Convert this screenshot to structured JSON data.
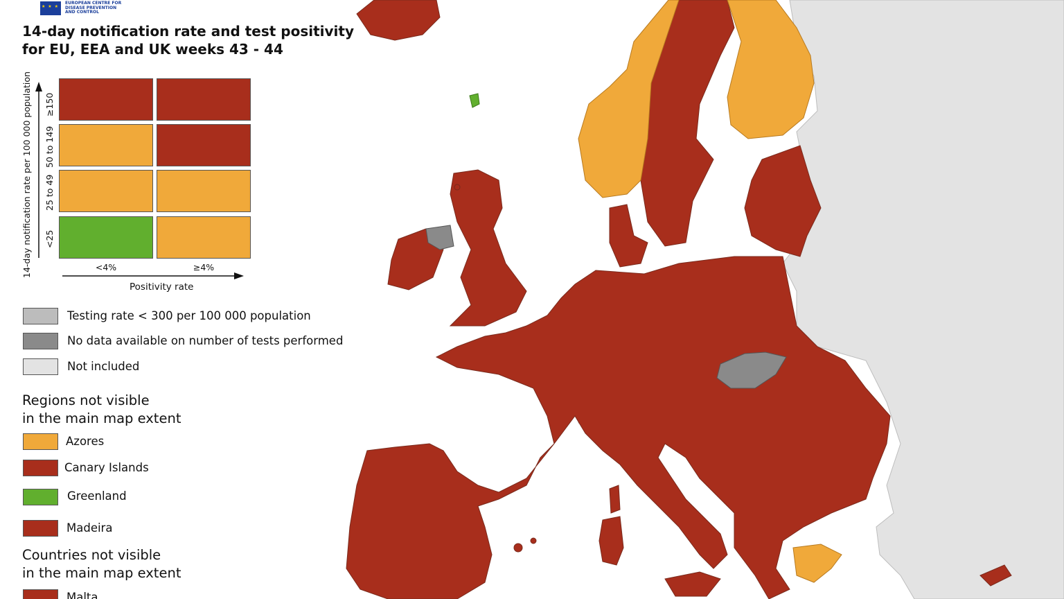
{
  "header": {
    "logo_text": "EUROPEAN CENTRE FOR DISEASE PREVENTION AND CONTROL",
    "title_line1": "14-day notification rate and test positivity",
    "title_line2": "for EU, EEA and UK weeks 43 - 44"
  },
  "matrix": {
    "y_axis_label": "14-day notification rate per 100 000 population",
    "x_axis_label": "Positivity rate",
    "row_labels": [
      "≥150",
      "50 to 149",
      "25 to 49",
      "<25"
    ],
    "col_labels": [
      "<4%",
      "≥4%"
    ],
    "cells": [
      [
        "#a82e1c",
        "#a82e1c"
      ],
      [
        "#f0a93a",
        "#a82e1c"
      ],
      [
        "#f0a93a",
        "#f0a93a"
      ],
      [
        "#61af2e",
        "#f0a93a"
      ]
    ]
  },
  "legend": {
    "items": [
      {
        "label": "Testing rate < 300 per 100 000 population",
        "color": "#bcbcbc"
      },
      {
        "label": "No data available on number of tests performed",
        "color": "#8a8a8a"
      },
      {
        "label": "Not included",
        "color": "#e3e3e3"
      }
    ],
    "regions_heading_line1": "Regions not visible",
    "regions_heading_line2": "in the main map extent",
    "regions": [
      {
        "label": "Azores",
        "color": "#f0a93a"
      },
      {
        "label": "Canary Islands",
        "color": "#a82e1c"
      },
      {
        "label": "Greenland",
        "color": "#61af2e"
      },
      {
        "label": "Madeira",
        "color": "#a82e1c"
      }
    ],
    "countries_heading_line1": "Countries not visible",
    "countries_heading_line2": "in the main map extent",
    "countries": [
      {
        "label": "Malta",
        "color": "#a82e1c"
      }
    ]
  },
  "colors": {
    "red": "#a82e1c",
    "orange": "#f0a93a",
    "green": "#61af2e",
    "not_included": "#e3e3e3",
    "no_data": "#8a8a8a",
    "low_testing": "#bcbcbc",
    "border": "#7a2a1c"
  }
}
